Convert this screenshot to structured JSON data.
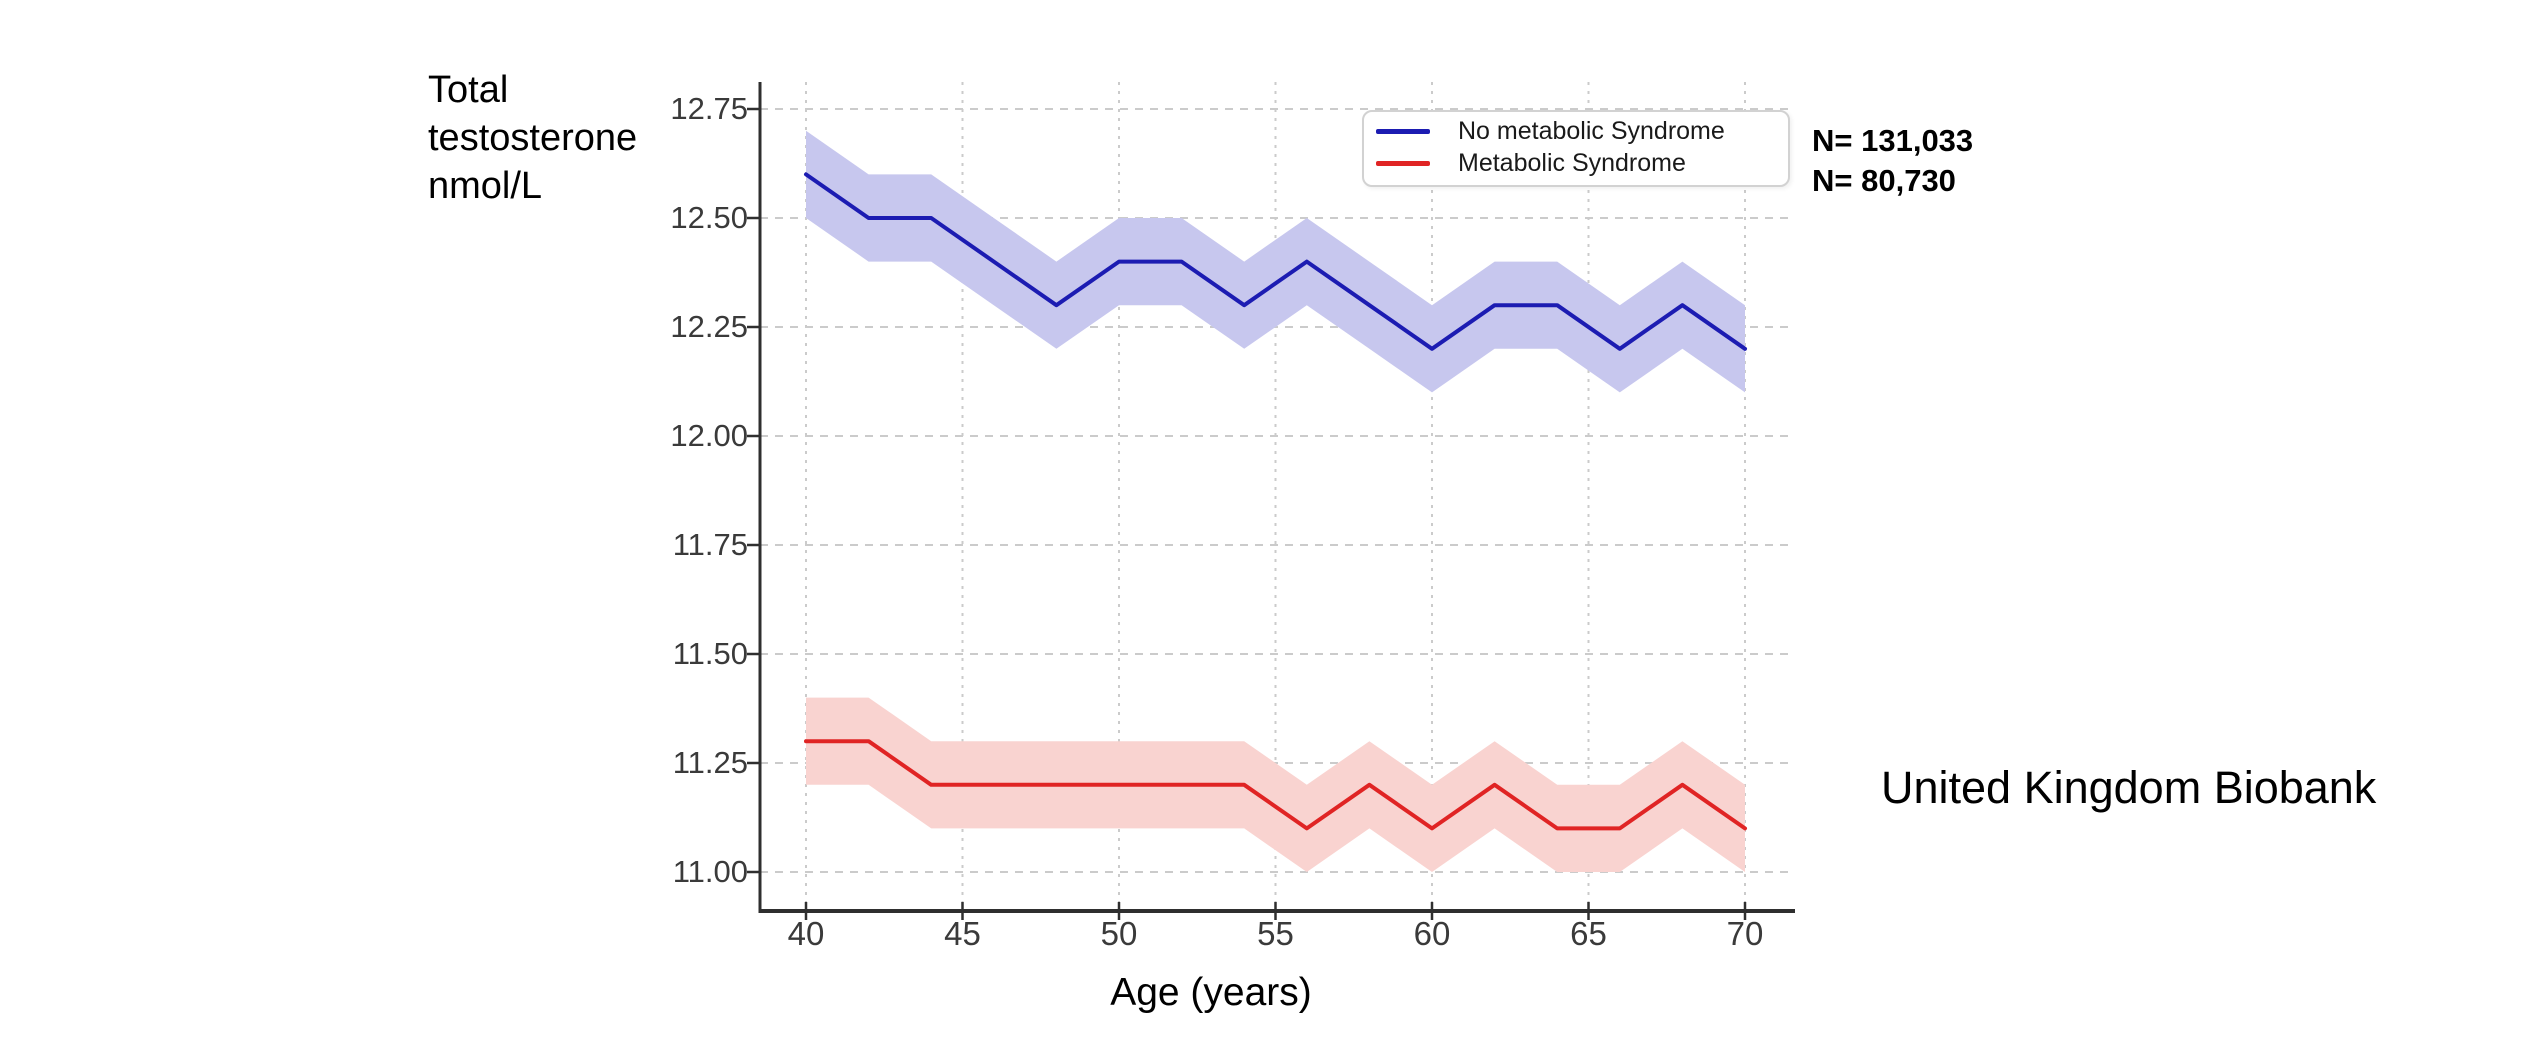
{
  "chart_data": {
    "type": "line",
    "title": "",
    "ylabel_lines": [
      "Total",
      "testosterone",
      "nmol/L"
    ],
    "ylabel": "Total testosterone nmol/L",
    "xlabel": "Age (years)",
    "x": [
      40,
      42,
      44,
      46,
      48,
      50,
      52,
      54,
      56,
      58,
      60,
      62,
      64,
      66,
      68,
      70
    ],
    "series": [
      {
        "name": "No metabolic Syndrome",
        "color": "#1c1cb2",
        "band_color": "#c7c7ee",
        "values": [
          12.6,
          12.5,
          12.5,
          12.4,
          12.3,
          12.4,
          12.4,
          12.3,
          12.4,
          12.3,
          12.2,
          12.3,
          12.3,
          12.2,
          12.3,
          12.2
        ],
        "ci_half_width": 0.1,
        "n_label": "N= 131,033"
      },
      {
        "name": "Metabolic Syndrome",
        "color": "#e02424",
        "band_color": "#f9d3d0",
        "values": [
          11.3,
          11.3,
          11.2,
          11.2,
          11.2,
          11.2,
          11.2,
          11.2,
          11.1,
          11.2,
          11.1,
          11.2,
          11.1,
          11.1,
          11.2,
          11.1
        ],
        "ci_half_width": 0.1,
        "n_label": "N= 80,730"
      }
    ],
    "x_ticks": [
      "40",
      "45",
      "50",
      "55",
      "60",
      "65",
      "70"
    ],
    "y_ticks": [
      "12.75",
      "12.50",
      "12.25",
      "12.00",
      "11.75",
      "11.50",
      "11.25",
      "11.00"
    ],
    "xlim": [
      38.5,
      71.6
    ],
    "ylim": [
      10.91,
      12.81
    ],
    "grid": true,
    "legend_position": "upper right inside"
  },
  "annotations": {
    "n_blue": "N= 131,033",
    "n_red": "N= 80,730",
    "side_text": "United Kingdom Biobank"
  },
  "colors": {
    "background": "#ffffff",
    "gridline": "#cbcbcb",
    "spine": "#2f2f2f",
    "tick_label": "#3a3a3a",
    "blue_line": "#1c1cb2",
    "blue_band": "#c7c7ee",
    "red_line": "#e02424",
    "red_band": "#f9d3d0"
  }
}
